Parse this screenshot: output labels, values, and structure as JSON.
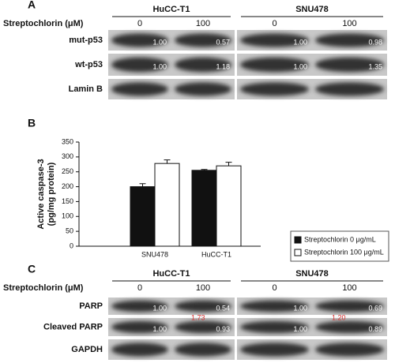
{
  "panel_a": {
    "label": "A",
    "treatment_label": "Streptochlorin (μM)",
    "cell_lines": [
      {
        "name": "HuCC-T1",
        "doses": [
          "0",
          "100"
        ]
      },
      {
        "name": "SNU478",
        "doses": [
          "0",
          "100"
        ]
      }
    ],
    "rows": [
      {
        "name": "mut-p53",
        "values": [
          "1.00",
          "0.57",
          "1.00",
          "0.98"
        ]
      },
      {
        "name": "wt-p53",
        "values": [
          "1.00",
          "1.18",
          "1.00",
          "1.35"
        ]
      },
      {
        "name": "Lamin B",
        "values": []
      }
    ]
  },
  "chart_data": {
    "type": "bar",
    "panel_label": "B",
    "y_label": [
      "Active caspase-3",
      "(pg/mg protein)"
    ],
    "categories": [
      "SNU478",
      "HuCC-T1"
    ],
    "series": [
      {
        "name": "Streptochlorin 0 μg/mL",
        "color": "#111111",
        "values": [
          200,
          255
        ],
        "errors": [
          10,
          3
        ]
      },
      {
        "name": "Streptochlorin 100 μg/mL",
        "color": "#ffffff",
        "values": [
          278,
          270
        ],
        "errors": [
          12,
          12
        ]
      }
    ],
    "ylim": [
      0,
      350
    ],
    "yticks": [
      0,
      50,
      100,
      150,
      200,
      250,
      300,
      350
    ]
  },
  "panel_c": {
    "label": "C",
    "treatment_label": "Streptochlorin (μM)",
    "cell_lines": [
      {
        "name": "HuCC-T1",
        "doses": [
          "0",
          "100"
        ]
      },
      {
        "name": "SNU478",
        "doses": [
          "0",
          "100"
        ]
      }
    ],
    "rows": [
      {
        "name": "PARP",
        "values": [
          "1.00",
          "0.54",
          "1.00",
          "0.69"
        ]
      },
      {
        "name": "Cleaved PARP",
        "values": [
          "1.00",
          "0.93",
          "1.00",
          "0.89"
        ]
      },
      {
        "name": "GAPDH",
        "values": []
      }
    ],
    "fold_changes": [
      "1.73",
      "1.20"
    ]
  }
}
